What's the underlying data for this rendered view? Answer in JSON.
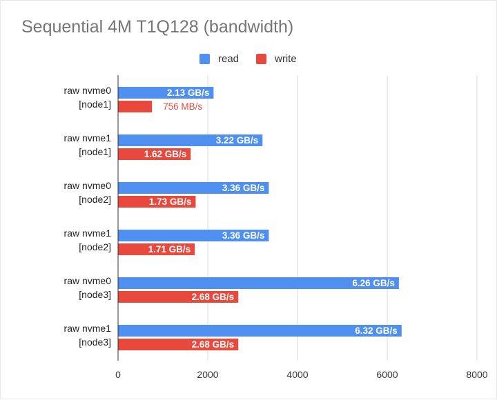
{
  "chart_data": {
    "type": "bar",
    "orientation": "horizontal",
    "title": "Sequential 4M T1Q128 (bandwidth)",
    "categories": [
      [
        "raw nvme0",
        "[node1]"
      ],
      [
        "raw nvme1",
        "[node1]"
      ],
      [
        "raw nvme0",
        "[node2]"
      ],
      [
        "raw nvme1",
        "[node2]"
      ],
      [
        "raw nvme0",
        "[node3]"
      ],
      [
        "raw nvme1",
        "[node3]"
      ]
    ],
    "series": [
      {
        "name": "read",
        "color": "#4f8ff0",
        "values": [
          2130,
          3220,
          3360,
          3360,
          6260,
          6320
        ],
        "labels": [
          "2.13 GB/s",
          "3.22 GB/s",
          "3.36 GB/s",
          "3.36 GB/s",
          "6.26 GB/s",
          "6.32 GB/s"
        ]
      },
      {
        "name": "write",
        "color": "#e8493c",
        "values": [
          756,
          1620,
          1730,
          1710,
          2680,
          2680
        ],
        "labels": [
          "756  MB/s",
          "1.62 GB/s",
          "1.73 GB/s",
          "1.71 GB/s",
          "2.68 GB/s",
          "2.68 GB/s"
        ]
      }
    ],
    "xlim": [
      0,
      8000
    ],
    "xticks": [
      "0",
      "2000",
      "4000",
      "6000",
      "8000"
    ],
    "grid": true,
    "legend_position": "top"
  }
}
